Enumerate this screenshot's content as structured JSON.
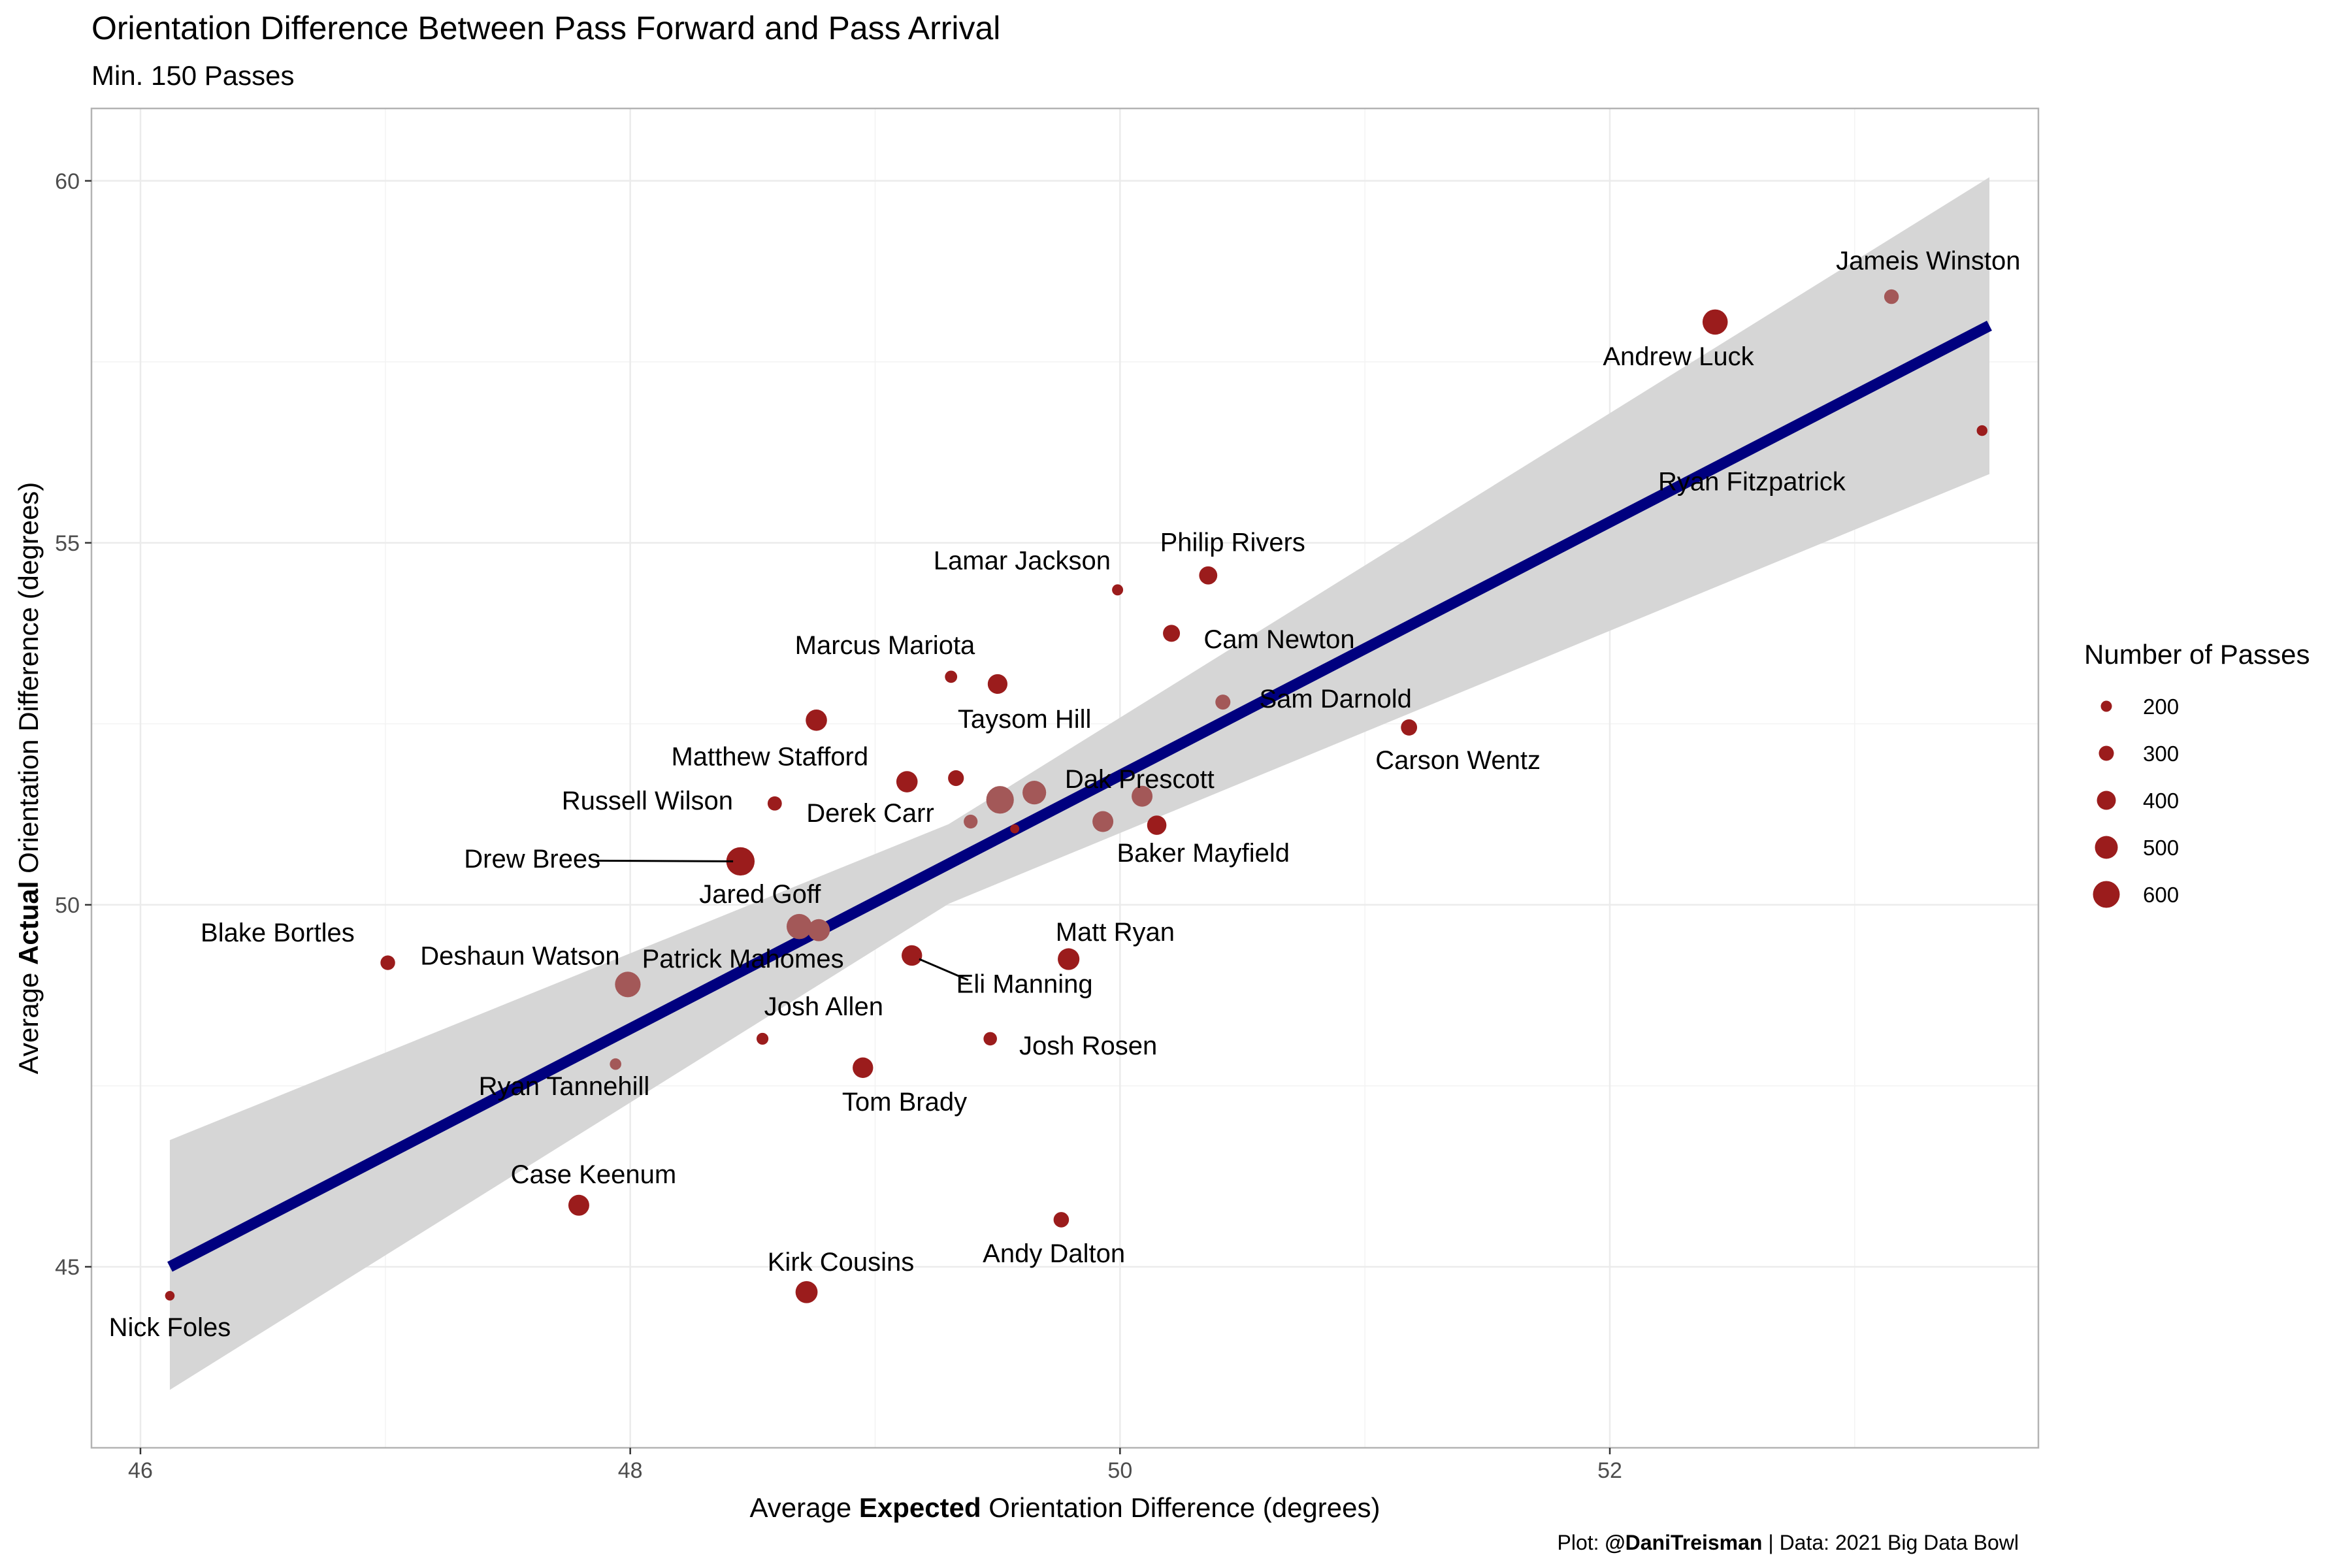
{
  "title": "Orientation Difference Between Pass Forward and Pass Arrival",
  "subtitle": "Min. 150 Passes",
  "caption": {
    "prefix": "Plot: ",
    "handle": "@DaniTreisman",
    "suffix": " | Data: 2021 Big Data Bowl"
  },
  "colors": {
    "point": "#9b1c1c",
    "point_faded": "#a35858",
    "line": "#00007f",
    "ribbon": "#d6d6d6",
    "grid": "#ebebeb",
    "border": "#b3b3b3"
  },
  "chart_data": {
    "type": "scatter",
    "xlabel": {
      "before": "Average ",
      "bold": "Expected",
      "after": " Orientation Difference (degrees)"
    },
    "ylabel": {
      "before": "Average ",
      "bold": "Actual",
      "after": " Orientation Difference (degrees)"
    },
    "xlim": [
      45.8,
      53.75
    ],
    "ylim": [
      42.5,
      61.0
    ],
    "x_ticks": [
      46,
      48,
      50,
      52
    ],
    "y_ticks": [
      45,
      50,
      55,
      60
    ],
    "grid": true,
    "legend": {
      "title": "Number of Passes",
      "position": "right",
      "sizes": [
        200,
        300,
        400,
        500,
        600
      ]
    },
    "trend": {
      "type": "linear",
      "from": {
        "x": 46.12,
        "y": 45.0
      },
      "to": {
        "x": 53.55,
        "y": 58.0
      },
      "ci_at_start": [
        43.3,
        46.75
      ],
      "ci_at_end": [
        55.95,
        60.05
      ]
    },
    "points": [
      {
        "name": "Jameis Winston",
        "x": 53.15,
        "y": 58.4,
        "passes": 290,
        "faded": true
      },
      {
        "name": "Andrew Luck",
        "x": 52.43,
        "y": 58.05,
        "passes": 560,
        "faded": false
      },
      {
        "name": "Ryan Fitzpatrick",
        "x": 53.52,
        "y": 56.55,
        "passes": 190,
        "faded": false
      },
      {
        "name": "Philip Rivers",
        "x": 50.36,
        "y": 54.55,
        "passes": 380,
        "faded": false
      },
      {
        "name": "Lamar Jackson",
        "x": 49.99,
        "y": 54.35,
        "passes": 200,
        "faded": false
      },
      {
        "name": "Cam Newton",
        "x": 50.21,
        "y": 53.75,
        "passes": 350,
        "faded": false
      },
      {
        "name": "Marcus Mariota",
        "x": 49.31,
        "y": 53.15,
        "passes": 230,
        "faded": false
      },
      {
        "name": "",
        "x": 49.5,
        "y": 53.05,
        "passes": 420,
        "faded": false
      },
      {
        "name": "Sam Darnold",
        "x": 50.42,
        "y": 52.8,
        "passes": 300,
        "faded": true
      },
      {
        "name": "Taysom Hill",
        "x": 48.76,
        "y": 52.55,
        "passes": 460,
        "faded": false
      },
      {
        "name": "Carson Wentz",
        "x": 51.18,
        "y": 52.45,
        "passes": 330,
        "faded": false
      },
      {
        "name": "Matthew Stafford",
        "x": 49.13,
        "y": 51.7,
        "passes": 460,
        "faded": false
      },
      {
        "name": "",
        "x": 49.33,
        "y": 51.75,
        "passes": 320,
        "faded": false
      },
      {
        "name": "Dak Prescott",
        "x": 49.65,
        "y": 51.55,
        "passes": 520,
        "faded": true
      },
      {
        "name": "",
        "x": 49.51,
        "y": 51.45,
        "passes": 620,
        "faded": true
      },
      {
        "name": "",
        "x": 50.09,
        "y": 51.5,
        "passes": 450,
        "faded": true
      },
      {
        "name": "Russell Wilson",
        "x": 48.59,
        "y": 51.4,
        "passes": 280,
        "faded": false
      },
      {
        "name": "Derek Carr",
        "x": 49.39,
        "y": 51.15,
        "passes": 270,
        "faded": true
      },
      {
        "name": "",
        "x": 49.57,
        "y": 51.05,
        "passes": 150,
        "faded": false
      },
      {
        "name": "",
        "x": 49.93,
        "y": 51.15,
        "passes": 450,
        "faded": true
      },
      {
        "name": "Baker Mayfield",
        "x": 50.15,
        "y": 51.1,
        "passes": 410,
        "faded": false
      },
      {
        "name": "Drew Brees",
        "x": 48.45,
        "y": 50.6,
        "passes": 640,
        "faded": false
      },
      {
        "name": "Jared Goff",
        "x": 48.69,
        "y": 49.7,
        "passes": 560,
        "faded": true
      },
      {
        "name": "",
        "x": 48.77,
        "y": 49.65,
        "passes": 480,
        "faded": true
      },
      {
        "name": "Blake Bortles",
        "x": 47.01,
        "y": 49.2,
        "passes": 290,
        "faded": false
      },
      {
        "name": "Eli Manning",
        "x": 49.15,
        "y": 49.3,
        "passes": 440,
        "faded": false
      },
      {
        "name": "Matt Ryan",
        "x": 49.79,
        "y": 49.25,
        "passes": 470,
        "faded": false
      },
      {
        "name": "Deshaun Watson",
        "x": 47.99,
        "y": 48.9,
        "passes": 570,
        "faded": true
      },
      {
        "name": "Josh Allen",
        "x": 48.54,
        "y": 48.15,
        "passes": 220,
        "faded": false
      },
      {
        "name": "Josh Rosen",
        "x": 49.47,
        "y": 48.15,
        "passes": 260,
        "faded": false
      },
      {
        "name": "Ryan Tannehill",
        "x": 47.94,
        "y": 47.8,
        "passes": 210,
        "faded": true
      },
      {
        "name": "Tom Brady",
        "x": 48.95,
        "y": 47.75,
        "passes": 440,
        "faded": false
      },
      {
        "name": "Case Keenum",
        "x": 47.79,
        "y": 45.85,
        "passes": 450,
        "faded": false
      },
      {
        "name": "Andy Dalton",
        "x": 49.76,
        "y": 45.65,
        "passes": 310,
        "faded": false
      },
      {
        "name": "Kirk Cousins",
        "x": 48.72,
        "y": 44.65,
        "passes": 480,
        "faded": false
      },
      {
        "name": "Nick Foles",
        "x": 46.12,
        "y": 44.6,
        "passes": 160,
        "faded": false
      }
    ],
    "labels": [
      {
        "text": "Jameis Winston",
        "x": 53.3,
        "y": 58.87
      },
      {
        "text": "Andrew Luck",
        "x": 52.28,
        "y": 57.55
      },
      {
        "text": "Ryan Fitzpatrick",
        "x": 52.58,
        "y": 55.82
      },
      {
        "text": "Philip Rivers",
        "x": 50.46,
        "y": 54.98
      },
      {
        "text": "Lamar Jackson",
        "x": 49.6,
        "y": 54.73
      },
      {
        "text": "Cam Newton",
        "x": 50.65,
        "y": 53.64
      },
      {
        "text": "Marcus Mariota",
        "x": 49.04,
        "y": 53.56
      },
      {
        "text": "Sam Darnold",
        "x": 50.88,
        "y": 52.82
      },
      {
        "text": "Taysom Hill",
        "x": 49.61,
        "y": 52.54
      },
      {
        "text": "Carson Wentz",
        "x": 51.38,
        "y": 51.97
      },
      {
        "text": "Matthew Stafford",
        "x": 48.57,
        "y": 52.02
      },
      {
        "text": "Dak Prescott",
        "x": 50.08,
        "y": 51.71
      },
      {
        "text": "Russell Wilson",
        "x": 48.07,
        "y": 51.41
      },
      {
        "text": "Derek Carr",
        "x": 48.98,
        "y": 51.24
      },
      {
        "text": "Baker Mayfield",
        "x": 50.34,
        "y": 50.69
      },
      {
        "text": "Drew Brees",
        "x": 47.6,
        "y": 50.61
      },
      {
        "text": "Jared Goff",
        "x": 48.53,
        "y": 50.12
      },
      {
        "text": "Blake Bortles",
        "x": 46.56,
        "y": 49.59
      },
      {
        "text": "Deshaun Watson",
        "x": 47.55,
        "y": 49.27
      },
      {
        "text": "Patrick Mahomes",
        "x": 48.46,
        "y": 49.23
      },
      {
        "text": "Eli Manning",
        "x": 49.61,
        "y": 48.88
      },
      {
        "text": "Matt Ryan",
        "x": 49.98,
        "y": 49.6
      },
      {
        "text": "Josh Allen",
        "x": 48.79,
        "y": 48.57
      },
      {
        "text": "Josh Rosen",
        "x": 49.87,
        "y": 48.03
      },
      {
        "text": "Ryan Tannehill",
        "x": 47.73,
        "y": 47.47
      },
      {
        "text": "Tom Brady",
        "x": 49.12,
        "y": 47.25
      },
      {
        "text": "Case Keenum",
        "x": 47.85,
        "y": 46.25
      },
      {
        "text": "Andy Dalton",
        "x": 49.73,
        "y": 45.16
      },
      {
        "text": "Kirk Cousins",
        "x": 48.86,
        "y": 45.04
      },
      {
        "text": "Nick Foles",
        "x": 46.12,
        "y": 44.14
      }
    ],
    "leaders": [
      {
        "from": {
          "x": 47.85,
          "y": 50.61
        },
        "to": {
          "x": 48.42,
          "y": 50.6
        }
      },
      {
        "from": {
          "x": 49.18,
          "y": 49.25
        },
        "to": {
          "x": 49.38,
          "y": 48.96
        }
      }
    ]
  }
}
